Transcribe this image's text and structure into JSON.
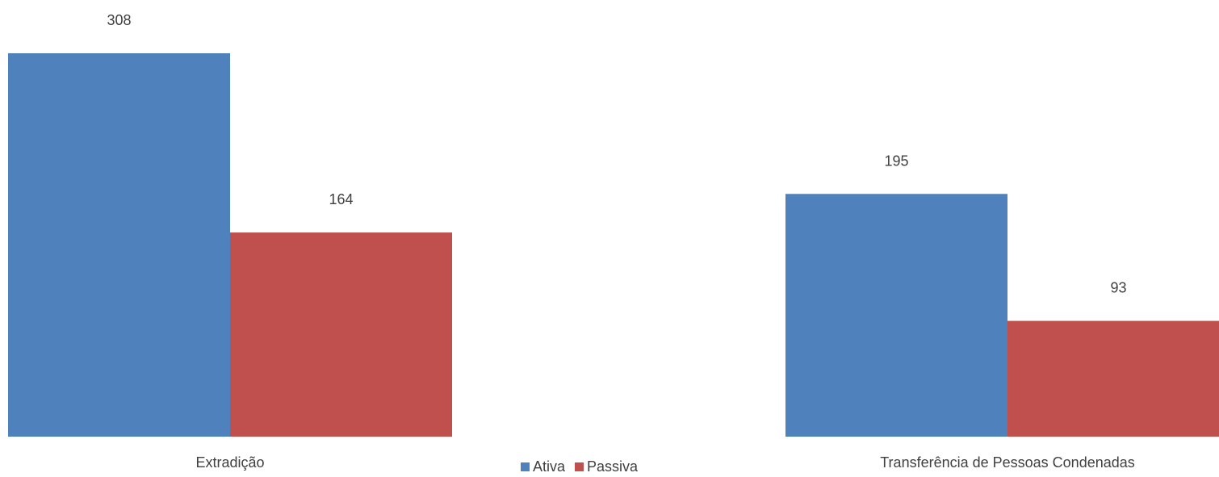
{
  "chart_data": {
    "type": "bar",
    "categories": [
      "Extradição",
      "Transferência de Pessoas Condenadas"
    ],
    "series": [
      {
        "name": "Ativa",
        "values": [
          308,
          195
        ],
        "color": "#4F81BD"
      },
      {
        "name": "Passiva",
        "values": [
          164,
          93
        ],
        "color": "#C0504D"
      }
    ],
    "ylim": [
      0,
      308
    ],
    "grid": false,
    "legend_position": "bottom",
    "data_labels": true
  }
}
